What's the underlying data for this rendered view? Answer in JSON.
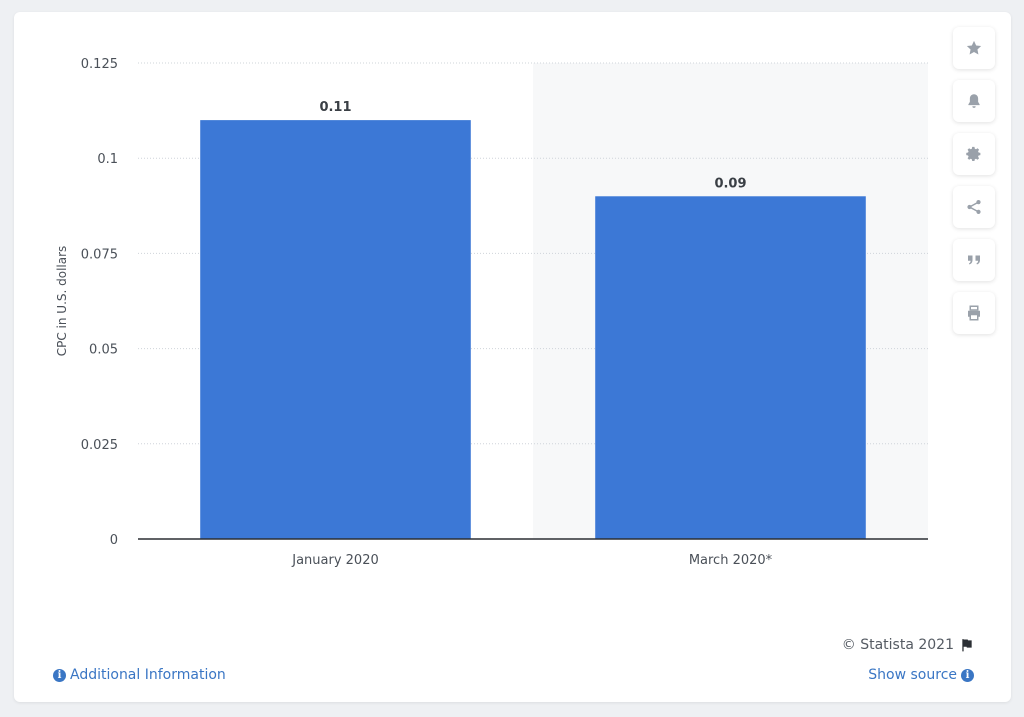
{
  "chart_data": {
    "type": "bar",
    "categories": [
      "January 2020",
      "March 2020*"
    ],
    "values": [
      0.11,
      0.09
    ],
    "data_labels": [
      "0.11",
      "0.09"
    ],
    "ylabel": "CPC in U.S. dollars",
    "xlabel": "",
    "ylim": [
      0,
      0.125
    ],
    "yticks": [
      0,
      0.025,
      0.05,
      0.075,
      0.1,
      0.125
    ],
    "ytick_labels": [
      "0",
      "0.025",
      "0.05",
      "0.075",
      "0.1",
      "0.125"
    ],
    "grid": true,
    "bar_color": "#3c78d6",
    "highlight_band_color": "#f7f8f9"
  },
  "toolbar": {
    "items": [
      {
        "icon": "star-icon"
      },
      {
        "icon": "bell-icon"
      },
      {
        "icon": "gear-icon"
      },
      {
        "icon": "share-icon"
      },
      {
        "icon": "quote-icon"
      },
      {
        "icon": "print-icon"
      }
    ]
  },
  "footer": {
    "copyright": "© Statista 2021",
    "additional_info": "Additional Information",
    "show_source": "Show source",
    "info_glyph": "i"
  }
}
